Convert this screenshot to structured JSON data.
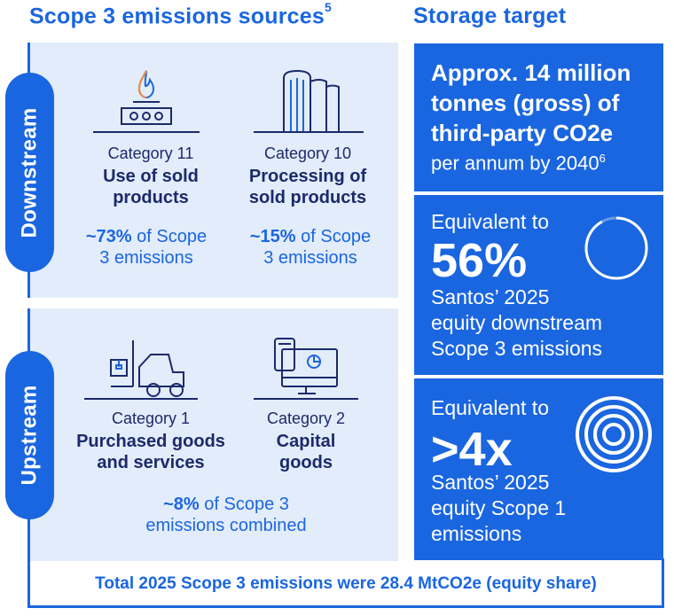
{
  "scope3": {
    "title": "Scope 3 emissions sources",
    "title_sup": "5",
    "downstream": {
      "label": "Downstream",
      "items": [
        {
          "category": "Category 11",
          "name_line1": "Use of sold",
          "name_line2": "products",
          "pct": "~73%",
          "pct_rest": " of Scope",
          "pct_line2": "3 emissions"
        },
        {
          "category": "Category 10",
          "name_line1": "Processing of",
          "name_line2": "sold products",
          "pct": "~15%",
          "pct_rest": " of Scope",
          "pct_line2": "3 emissions"
        }
      ]
    },
    "upstream": {
      "label": "Upstream",
      "items": [
        {
          "category": "Category 1",
          "name_line1": "Purchased goods",
          "name_line2": "and services"
        },
        {
          "category": "Category 2",
          "name_line1": "Capital",
          "name_line2": "goods"
        }
      ],
      "pct": "~8%",
      "pct_rest": " of Scope 3",
      "pct_line2": "emissions combined"
    },
    "footer": "Total 2025 Scope 3 emissions were 28.4 MtCO2e (equity share)"
  },
  "storage": {
    "title": "Storage target",
    "box1": {
      "line1": "Approx. 14 million",
      "line2": "tonnes (gross) of",
      "line3": "third-party CO2e",
      "line4": "per annum by 2040",
      "sup": "6"
    },
    "box2": {
      "intro": "Equivalent to",
      "big": "56%",
      "percent_value": 56,
      "line1": "Santos’ 2025",
      "line2": "equity downstream",
      "line3": "Scope 3 emissions"
    },
    "box3": {
      "intro": "Equivalent to",
      "big": ">4x",
      "line1": "Santos’ 2025",
      "line2": "equity Scope 1",
      "line3": "emissions"
    }
  },
  "colors": {
    "accent": "#1a66e0",
    "panel": "#e3ecfa",
    "navy": "#1b2a6b"
  }
}
